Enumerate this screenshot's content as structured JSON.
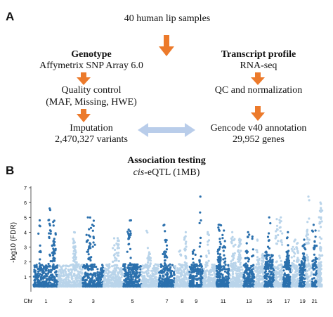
{
  "panel_a": {
    "label": "A",
    "top_text": "40 human lip samples",
    "genotype": {
      "title": "Genotype",
      "platform": "Affymetrix SNP Array 6.0",
      "qc_line1": "Quality control",
      "qc_line2": "(MAF, Missing, HWE)",
      "imputation": "Imputation",
      "variants": "2,470,327 variants"
    },
    "transcript": {
      "title": "Transcript profile",
      "method": "RNA-seq",
      "qc": "QC and normalization",
      "annotation": "Gencode v40 annotation",
      "genes": "29,952 genes"
    },
    "association": {
      "title": "Association testing",
      "italic_part": "cis",
      "rest": "-eQTL (1MB)"
    },
    "colors": {
      "arrow": "#ec7a2b",
      "double_arrow": "#b9cdea"
    }
  },
  "panel_b": {
    "label": "B"
  },
  "chart_data": {
    "type": "scatter",
    "subtype": "manhattan",
    "ylabel": "-log10 (FDR)",
    "xlabel": "Chr",
    "ylim": [
      0,
      7
    ],
    "yticks": [
      1,
      2,
      3,
      4,
      5,
      6,
      7
    ],
    "chromosomes": [
      {
        "chr": 1,
        "label": "1",
        "color": "#2b70ad",
        "peak": 5.6
      },
      {
        "chr": 2,
        "label": "2",
        "color": "#b9d4ea",
        "peak": 4.0
      },
      {
        "chr": 3,
        "label": "3",
        "color": "#2b70ad",
        "peak": 5.0
      },
      {
        "chr": 4,
        "label": "",
        "color": "#b9d4ea",
        "peak": 3.6
      },
      {
        "chr": 5,
        "label": "5",
        "color": "#2b70ad",
        "peak": 4.8
      },
      {
        "chr": 6,
        "label": "",
        "color": "#b9d4ea",
        "peak": 4.1
      },
      {
        "chr": 7,
        "label": "7",
        "color": "#2b70ad",
        "peak": 4.5
      },
      {
        "chr": 8,
        "label": "8",
        "color": "#b9d4ea",
        "peak": 4.0
      },
      {
        "chr": 9,
        "label": "9",
        "color": "#2b70ad",
        "peak": 6.4
      },
      {
        "chr": 10,
        "label": "",
        "color": "#b9d4ea",
        "peak": 4.0
      },
      {
        "chr": 11,
        "label": "11",
        "color": "#2b70ad",
        "peak": 4.5
      },
      {
        "chr": 12,
        "label": "",
        "color": "#b9d4ea",
        "peak": 4.0
      },
      {
        "chr": 13,
        "label": "13",
        "color": "#2b70ad",
        "peak": 4.0
      },
      {
        "chr": 14,
        "label": "",
        "color": "#b9d4ea",
        "peak": 3.5
      },
      {
        "chr": 15,
        "label": "15",
        "color": "#2b70ad",
        "peak": 5.0
      },
      {
        "chr": 16,
        "label": "",
        "color": "#b9d4ea",
        "peak": 5.0
      },
      {
        "chr": 17,
        "label": "17",
        "color": "#2b70ad",
        "peak": 4.0
      },
      {
        "chr": 18,
        "label": "",
        "color": "#b9d4ea",
        "peak": 3.5
      },
      {
        "chr": 19,
        "label": "19",
        "color": "#2b70ad",
        "peak": 3.5
      },
      {
        "chr": 20,
        "label": "",
        "color": "#b9d4ea",
        "peak": 6.4
      },
      {
        "chr": 21,
        "label": "21",
        "color": "#2b70ad",
        "peak": 4.5
      },
      {
        "chr": 22,
        "label": "",
        "color": "#b9d4ea",
        "peak": 6.0
      }
    ],
    "grid": false
  }
}
